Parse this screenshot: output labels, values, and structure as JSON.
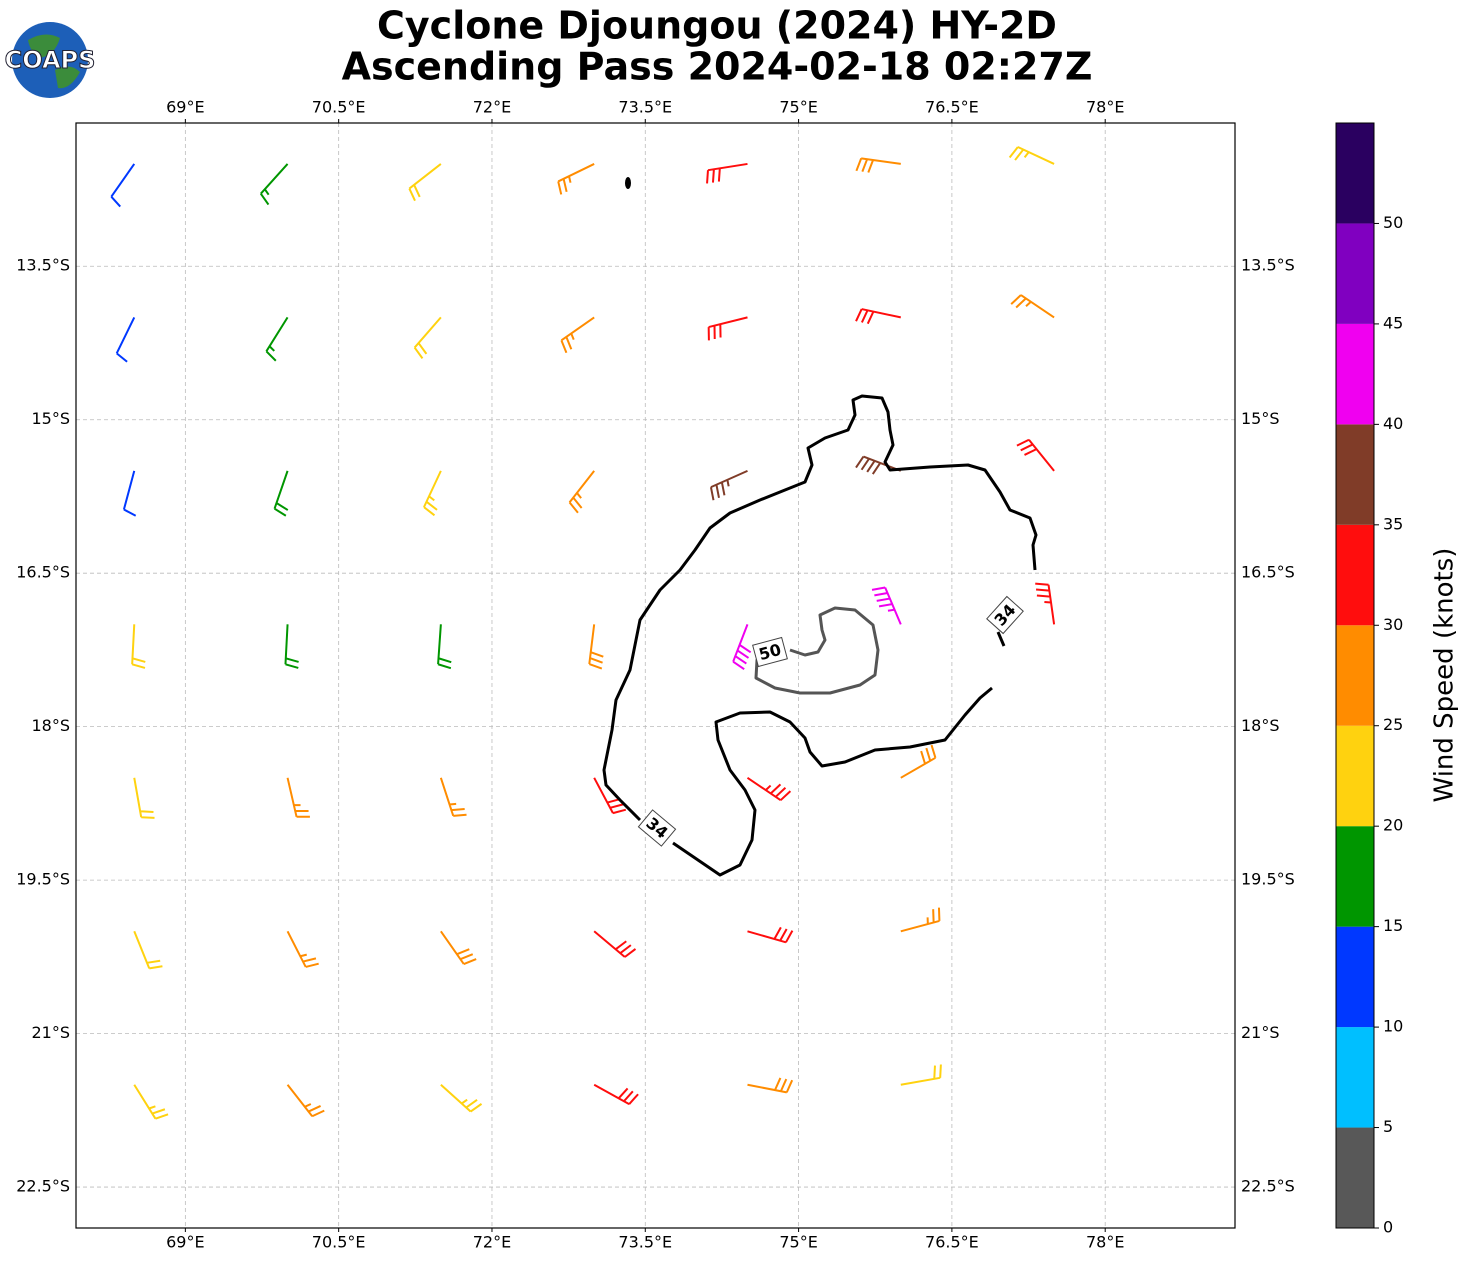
{
  "map": {
    "title": [
      "Cyclone Djoungou (2024) HY-2D",
      "Ascending Pass 2024-02-18 02:27Z"
    ],
    "logo": "COAPS",
    "xlim": [
      67.93,
      79.27
    ],
    "ylim": [
      -22.9,
      -12.1
    ],
    "xticks": [
      {
        "value": 69,
        "label": "69°E"
      },
      {
        "value": 70.5,
        "label": "70.5°E"
      },
      {
        "value": 72,
        "label": "72°E"
      },
      {
        "value": 73.5,
        "label": "73.5°E"
      },
      {
        "value": 75,
        "label": "75°E"
      },
      {
        "value": 76.5,
        "label": "76.5°E"
      },
      {
        "value": 78,
        "label": "78°E"
      }
    ],
    "yticks": [
      {
        "value": -13.5,
        "label": "13.5°S"
      },
      {
        "value": -15,
        "label": "15°S"
      },
      {
        "value": -16.5,
        "label": "16.5°S"
      },
      {
        "value": -18,
        "label": "18°S"
      },
      {
        "value": -19.5,
        "label": "19.5°S"
      },
      {
        "value": -21,
        "label": "21°S"
      },
      {
        "value": -22.5,
        "label": "22.5°S"
      }
    ],
    "grid": true,
    "barbs": {
      "lons": [
        68.5,
        70,
        71.5,
        73,
        74.5,
        76,
        77.5
      ],
      "lats": [
        -12.5,
        -14,
        -15.5,
        -17,
        -18.5,
        -20,
        -21.5
      ],
      "speed": [
        [
          12,
          17,
          22,
          27,
          32,
          28,
          23
        ],
        [
          11,
          17,
          22,
          27,
          31,
          32,
          27
        ],
        [
          12,
          18,
          23,
          27,
          36,
          38,
          32
        ],
        [
          21,
          18,
          19,
          28,
          42,
          43,
          33
        ],
        [
          22,
          26,
          27,
          32,
          33,
          28,
          null
        ],
        [
          22,
          27,
          28,
          31,
          32,
          27,
          null
        ],
        [
          23,
          26,
          24,
          31,
          28,
          22,
          null
        ]
      ],
      "direction": [
        [
          215,
          222,
          232,
          244,
          261,
          278,
          295
        ],
        [
          206,
          212,
          221,
          235,
          256,
          282,
          304
        ],
        [
          195,
          199,
          205,
          218,
          246,
          291,
          321
        ],
        [
          183,
          183,
          184,
          187,
          201,
          337,
          352
        ],
        [
          170,
          167,
          162,
          152,
          124,
          60,
          null
        ],
        [
          158,
          153,
          145,
          130,
          106,
          75,
          null
        ],
        [
          148,
          142,
          132,
          119,
          101,
          80,
          null
        ]
      ]
    },
    "contour_labels": [
      "34",
      "34",
      "50"
    ],
    "colorbar": {
      "label": "Wind Speed (knots)",
      "bounds": [
        0,
        5,
        10,
        15,
        20,
        25,
        30,
        35,
        40,
        45,
        50,
        55
      ],
      "colors": [
        "#585858",
        "#00bfff",
        "#0038ff",
        "#009600",
        "#ffd20f",
        "#ff8c00",
        "#ff0d0d",
        "#803c28",
        "#f000f0",
        "#8000c0",
        "#2a0060"
      ],
      "ticks": [
        0,
        5,
        10,
        15,
        20,
        25,
        30,
        35,
        40,
        45,
        50
      ]
    }
  }
}
